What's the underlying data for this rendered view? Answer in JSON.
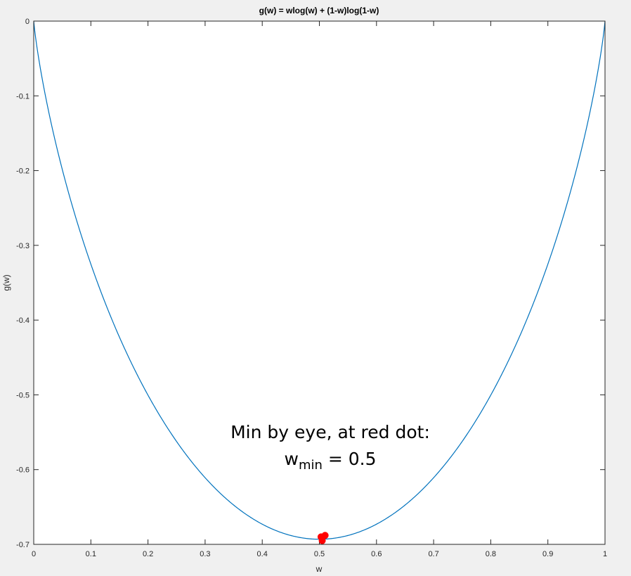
{
  "chart_data": {
    "type": "line",
    "title": "g(w) = wlog(w) + (1-w)log(1-w)",
    "xlabel": "w",
    "ylabel": "g(w)",
    "xlim": [
      0,
      1
    ],
    "ylim": [
      -0.7,
      0
    ],
    "grid": false,
    "xticks": [
      0,
      0.1,
      0.2,
      0.3,
      0.4,
      0.5,
      0.6,
      0.7,
      0.8,
      0.9,
      1
    ],
    "xtick_labels": [
      "0",
      "0.1",
      "0.2",
      "0.3",
      "0.4",
      "0.5",
      "0.6",
      "0.7",
      "0.8",
      "0.9",
      "1"
    ],
    "yticks": [
      0,
      -0.1,
      -0.2,
      -0.3,
      -0.4,
      -0.5,
      -0.6,
      -0.7
    ],
    "ytick_labels": [
      "0",
      "-0.1",
      "-0.2",
      "-0.3",
      "-0.4",
      "-0.5",
      "-0.6",
      "-0.7"
    ],
    "series": [
      {
        "function": "g(w) = w*ln(w) + (1-w)*ln(1-w)",
        "color": "#0072bd",
        "x": [
          0,
          0.05,
          0.1,
          0.15,
          0.2,
          0.25,
          0.3,
          0.35,
          0.4,
          0.45,
          0.5,
          0.55,
          0.6,
          0.65,
          0.7,
          0.75,
          0.8,
          0.85,
          0.9,
          0.95,
          1
        ],
        "y": [
          0,
          -0.199,
          -0.325,
          -0.423,
          -0.5,
          -0.562,
          -0.611,
          -0.647,
          -0.673,
          -0.688,
          -0.693,
          -0.688,
          -0.673,
          -0.647,
          -0.611,
          -0.562,
          -0.5,
          -0.423,
          -0.325,
          -0.199,
          0
        ]
      }
    ],
    "markers": [
      {
        "x": 0.503,
        "y": -0.69,
        "color": "#ff0000"
      },
      {
        "x": 0.51,
        "y": -0.688,
        "color": "#ff0000"
      },
      {
        "x": 0.505,
        "y": -0.695,
        "color": "#ff0000"
      }
    ],
    "annotation": {
      "line1": "Min by eye, at red dot:",
      "line2_var": "w",
      "line2_sub": "min",
      "line2_rest": " = 0.5"
    }
  }
}
